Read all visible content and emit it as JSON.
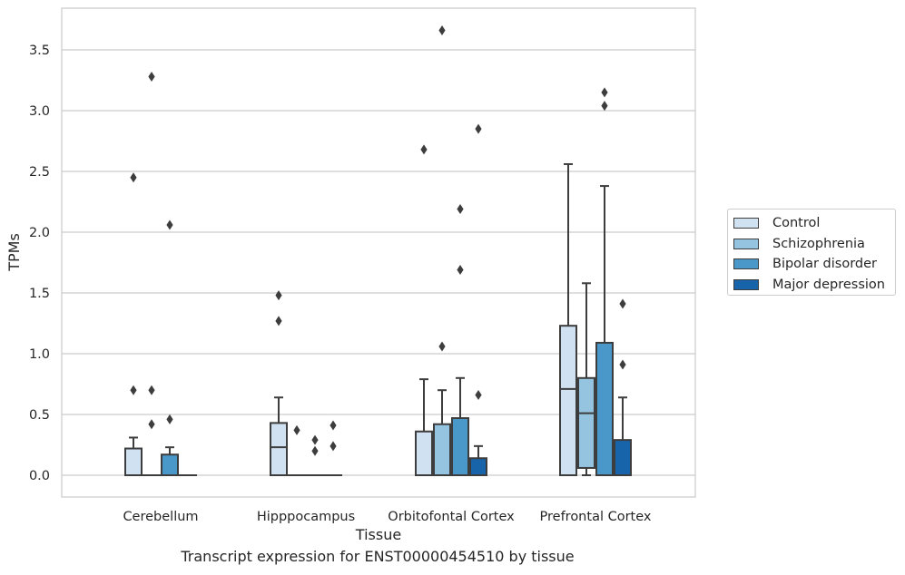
{
  "chart_data": {
    "type": "box",
    "xlabel": "Tissue",
    "ylabel": "TPMs",
    "ylim": [
      -0.18,
      3.85
    ],
    "yticks": [
      0.0,
      0.5,
      1.0,
      1.5,
      2.0,
      2.5,
      3.0,
      3.5
    ],
    "ytick_labels": [
      "0.0",
      "0.5",
      "1.0",
      "1.5",
      "2.0",
      "2.5",
      "3.0",
      "3.5"
    ],
    "grid": "horizontal",
    "legend_position": "right",
    "categories": [
      "Cerebellum",
      "Hipppocampus",
      "Orbitofontal Cortex",
      "Prefrontal Cortex"
    ],
    "series": [
      {
        "name": "Control",
        "color": "#d0e1f2",
        "boxes": [
          {
            "q1": 0.0,
            "median": 0.0,
            "q3": 0.22,
            "whisker_low": 0.0,
            "whisker_high": 0.31,
            "outliers": [
              0.7,
              2.45
            ]
          },
          {
            "q1": 0.0,
            "median": 0.23,
            "q3": 0.43,
            "whisker_low": 0.0,
            "whisker_high": 0.64,
            "outliers": [
              1.27,
              1.48
            ]
          },
          {
            "q1": 0.0,
            "median": 0.0,
            "q3": 0.36,
            "whisker_low": 0.0,
            "whisker_high": 0.79,
            "outliers": [
              2.68
            ]
          },
          {
            "q1": 0.0,
            "median": 0.71,
            "q3": 1.23,
            "whisker_low": 0.0,
            "whisker_high": 2.56,
            "outliers": []
          }
        ]
      },
      {
        "name": "Schizophrenia",
        "color": "#94c4df",
        "boxes": [
          {
            "q1": 0.0,
            "median": 0.0,
            "q3": 0.0,
            "whisker_low": 0.0,
            "whisker_high": 0.0,
            "outliers": [
              0.42,
              0.7,
              3.28
            ]
          },
          {
            "q1": 0.0,
            "median": 0.0,
            "q3": 0.0,
            "whisker_low": 0.0,
            "whisker_high": 0.0,
            "outliers": [
              0.37
            ]
          },
          {
            "q1": 0.0,
            "median": 0.0,
            "q3": 0.42,
            "whisker_low": 0.0,
            "whisker_high": 0.7,
            "outliers": [
              1.06,
              3.66
            ]
          },
          {
            "q1": 0.06,
            "median": 0.51,
            "q3": 0.8,
            "whisker_low": 0.0,
            "whisker_high": 1.58,
            "outliers": []
          }
        ]
      },
      {
        "name": "Bipolar disorder",
        "color": "#4a98c9",
        "boxes": [
          {
            "q1": 0.0,
            "median": 0.0,
            "q3": 0.17,
            "whisker_low": 0.0,
            "whisker_high": 0.23,
            "outliers": [
              0.46,
              2.06
            ]
          },
          {
            "q1": 0.0,
            "median": 0.0,
            "q3": 0.0,
            "whisker_low": 0.0,
            "whisker_high": 0.0,
            "outliers": [
              0.2,
              0.29
            ]
          },
          {
            "q1": 0.0,
            "median": 0.0,
            "q3": 0.47,
            "whisker_low": 0.0,
            "whisker_high": 0.8,
            "outliers": [
              1.69,
              2.19
            ]
          },
          {
            "q1": 0.0,
            "median": 0.0,
            "q3": 1.09,
            "whisker_low": 0.0,
            "whisker_high": 2.38,
            "outliers": [
              3.04,
              3.15
            ]
          }
        ]
      },
      {
        "name": "Major depression",
        "color": "#1764ab",
        "boxes": [
          {
            "q1": 0.0,
            "median": 0.0,
            "q3": 0.0,
            "whisker_low": 0.0,
            "whisker_high": 0.0,
            "outliers": []
          },
          {
            "q1": 0.0,
            "median": 0.0,
            "q3": 0.0,
            "whisker_low": 0.0,
            "whisker_high": 0.0,
            "outliers": [
              0.24,
              0.41
            ]
          },
          {
            "q1": 0.0,
            "median": 0.0,
            "q3": 0.14,
            "whisker_low": 0.0,
            "whisker_high": 0.24,
            "outliers": [
              0.66,
              2.85
            ]
          },
          {
            "q1": 0.0,
            "median": 0.0,
            "q3": 0.29,
            "whisker_low": 0.0,
            "whisker_high": 0.64,
            "outliers": [
              0.91,
              1.41
            ]
          }
        ]
      }
    ]
  },
  "caption": "Transcript expression for ENST00000454510 by tissue"
}
